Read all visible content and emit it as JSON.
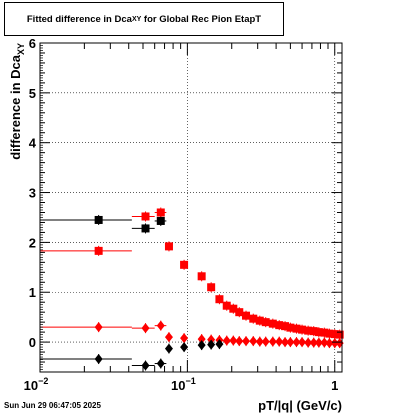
{
  "chart_data": {
    "type": "scatter",
    "title_main": "Fitted difference in Dca",
    "title_sub": "XY",
    "title_tail": " for Global Rec Pion EtapT",
    "xlabel": "pT/|q| (GeV/c)",
    "ylabel_main": "difference in Dca",
    "ylabel_sub": "XY",
    "x_scale": "log",
    "xlim": [
      0.01,
      1.12
    ],
    "ylim": [
      -0.6,
      6
    ],
    "grid": true,
    "x_ticks": [
      {
        "value": 0.01,
        "base": "10",
        "exp": "−2"
      },
      {
        "value": 0.1,
        "base": "10",
        "exp": "−1"
      },
      {
        "value": 1,
        "base": "1",
        "exp": ""
      }
    ],
    "y_ticks": [
      0,
      1,
      2,
      3,
      4,
      5,
      6
    ],
    "series": [
      {
        "marker": "square",
        "color": "#000000",
        "points": [
          {
            "x": 0.025,
            "y": 2.45,
            "xerr": [
              0.01,
              0.042
            ]
          },
          {
            "x": 0.052,
            "y": 2.28,
            "xerr": [
              0.042,
              0.06
            ]
          },
          {
            "x": 0.066,
            "y": 2.43,
            "xerr": [
              0.06,
              0.072
            ]
          }
        ]
      },
      {
        "marker": "square",
        "color": "#ff0000",
        "points": [
          {
            "x": 0.025,
            "y": 1.83,
            "xerr": [
              0.01,
              0.042
            ]
          },
          {
            "x": 0.052,
            "y": 2.52,
            "xerr": [
              0.042,
              0.06
            ]
          },
          {
            "x": 0.066,
            "y": 2.6,
            "xerr": [
              0.06,
              0.072
            ]
          },
          {
            "x": 0.075,
            "y": 1.92
          },
          {
            "x": 0.095,
            "y": 1.55
          },
          {
            "x": 0.125,
            "y": 1.32
          },
          {
            "x": 0.145,
            "y": 1.1
          },
          {
            "x": 0.165,
            "y": 0.86
          },
          {
            "x": 0.185,
            "y": 0.73
          },
          {
            "x": 0.205,
            "y": 0.67
          },
          {
            "x": 0.225,
            "y": 0.6
          },
          {
            "x": 0.25,
            "y": 0.53
          },
          {
            "x": 0.28,
            "y": 0.47
          },
          {
            "x": 0.31,
            "y": 0.43
          },
          {
            "x": 0.34,
            "y": 0.4
          },
          {
            "x": 0.38,
            "y": 0.37
          },
          {
            "x": 0.42,
            "y": 0.34
          },
          {
            "x": 0.46,
            "y": 0.32
          },
          {
            "x": 0.5,
            "y": 0.29
          },
          {
            "x": 0.55,
            "y": 0.27
          },
          {
            "x": 0.6,
            "y": 0.25
          },
          {
            "x": 0.66,
            "y": 0.23
          },
          {
            "x": 0.72,
            "y": 0.22
          },
          {
            "x": 0.78,
            "y": 0.2
          },
          {
            "x": 0.85,
            "y": 0.19
          },
          {
            "x": 0.92,
            "y": 0.17
          },
          {
            "x": 1.0,
            "y": 0.16
          },
          {
            "x": 1.08,
            "y": 0.15
          }
        ]
      },
      {
        "marker": "diamond",
        "color": "#ff0000",
        "points": [
          {
            "x": 0.025,
            "y": 0.3,
            "xerr": [
              0.01,
              0.042
            ]
          },
          {
            "x": 0.052,
            "y": 0.28,
            "xerr": [
              0.042,
              0.06
            ]
          },
          {
            "x": 0.066,
            "y": 0.33,
            "xerr": [
              0.06,
              0.072
            ]
          },
          {
            "x": 0.075,
            "y": 0.1
          },
          {
            "x": 0.095,
            "y": 0.08
          },
          {
            "x": 0.125,
            "y": 0.06
          },
          {
            "x": 0.145,
            "y": 0.05
          },
          {
            "x": 0.165,
            "y": 0.04
          },
          {
            "x": 0.185,
            "y": 0.03
          },
          {
            "x": 0.205,
            "y": 0.03
          },
          {
            "x": 0.225,
            "y": 0.02
          },
          {
            "x": 0.25,
            "y": 0.02
          },
          {
            "x": 0.28,
            "y": 0.02
          },
          {
            "x": 0.31,
            "y": 0.01
          },
          {
            "x": 0.34,
            "y": 0.01
          },
          {
            "x": 0.38,
            "y": 0.01
          },
          {
            "x": 0.42,
            "y": 0.01
          },
          {
            "x": 0.46,
            "y": 0.0
          },
          {
            "x": 0.5,
            "y": 0.0
          },
          {
            "x": 0.55,
            "y": 0.0
          },
          {
            "x": 0.6,
            "y": 0.0
          },
          {
            "x": 0.66,
            "y": -0.01
          },
          {
            "x": 0.72,
            "y": -0.01
          },
          {
            "x": 0.78,
            "y": -0.01
          },
          {
            "x": 0.85,
            "y": -0.01
          },
          {
            "x": 0.92,
            "y": -0.02
          },
          {
            "x": 1.0,
            "y": -0.02
          },
          {
            "x": 1.08,
            "y": -0.02
          }
        ]
      },
      {
        "marker": "diamond",
        "color": "#000000",
        "points": [
          {
            "x": 0.025,
            "y": -0.34,
            "xerr": [
              0.01,
              0.042
            ]
          },
          {
            "x": 0.052,
            "y": -0.47,
            "xerr": [
              0.042,
              0.06
            ]
          },
          {
            "x": 0.066,
            "y": -0.43,
            "xerr": [
              0.06,
              0.072
            ]
          },
          {
            "x": 0.075,
            "y": -0.13
          },
          {
            "x": 0.095,
            "y": -0.1
          },
          {
            "x": 0.125,
            "y": -0.06
          },
          {
            "x": 0.145,
            "y": -0.05
          },
          {
            "x": 0.165,
            "y": -0.04
          }
        ]
      }
    ]
  },
  "footer": {
    "timestamp": "Sun Jun 29 06:47:05 2025"
  }
}
